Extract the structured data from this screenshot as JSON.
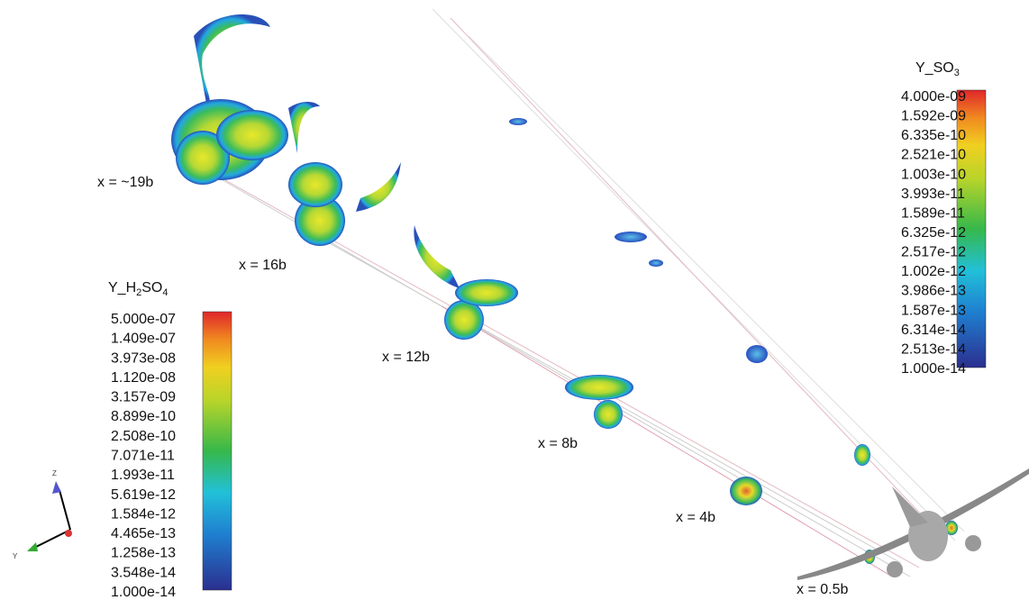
{
  "legend_h2so4": {
    "title": [
      "Y_H",
      "2",
      "SO",
      "4"
    ],
    "ticks": [
      "5.000e-07",
      "1.409e-07",
      "3.973e-08",
      "1.120e-08",
      "3.157e-09",
      "8.899e-10",
      "2.508e-10",
      "7.071e-11",
      "1.993e-11",
      "5.619e-12",
      "1.584e-12",
      "4.465e-13",
      "1.258e-13",
      "3.548e-14",
      "1.000e-14"
    ]
  },
  "legend_so3": {
    "title": [
      "Y_SO",
      "3"
    ],
    "ticks": [
      "4.000e-09",
      "1.592e-09",
      "6.335e-10",
      "2.521e-10",
      "1.003e-10",
      "3.993e-11",
      "1.589e-11",
      "6.325e-12",
      "2.517e-12",
      "1.002e-12",
      "3.986e-13",
      "1.587e-13",
      "6.314e-14",
      "2.513e-14",
      "1.000e-14"
    ]
  },
  "stations": [
    "x = ~19b",
    "x = 16b",
    "x = 12b",
    "x = 8b",
    "x = 4b",
    "x = 0.5b"
  ],
  "axes": {
    "z": "Z",
    "y": "Y"
  }
}
